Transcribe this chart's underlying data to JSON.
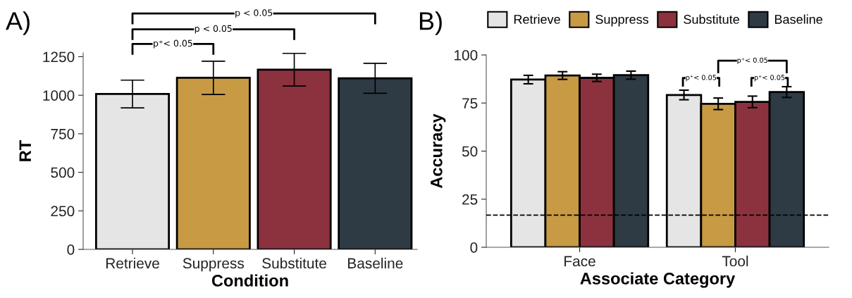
{
  "chart_data": [
    {
      "type": "bar",
      "title": "A)",
      "xlabel": "Condition",
      "ylabel": "RT",
      "categories": [
        "Retrieve",
        "Suppress",
        "Substitute",
        "Baseline"
      ],
      "values": [
        1008,
        1113,
        1166,
        1110
      ],
      "errors": [
        90,
        108,
        106,
        97
      ],
      "colors": [
        "#e5e5e5",
        "#c89a44",
        "#8c323e",
        "#2e3a44"
      ],
      "ylim": [
        0,
        1275
      ],
      "yticks": [
        0,
        250,
        500,
        750,
        1000,
        1250
      ],
      "grid": false,
      "annotations": [
        "p⁺< 0.05",
        "p < 0.05",
        "p < 0.05"
      ]
    },
    {
      "type": "bar",
      "title": "B)",
      "xlabel": "Associate Category",
      "ylabel": "Accuracy",
      "categories": [
        "Face",
        "Tool"
      ],
      "series": [
        {
          "name": "Retrieve",
          "color": "#e5e5e5",
          "values": [
            87.2,
            79.2
          ],
          "errors": [
            2.2,
            2.5
          ]
        },
        {
          "name": "Suppress",
          "color": "#c89a44",
          "values": [
            89.3,
            74.6
          ],
          "errors": [
            2.0,
            3.0
          ]
        },
        {
          "name": "Substitute",
          "color": "#8c323e",
          "values": [
            88.1,
            75.6
          ],
          "errors": [
            1.9,
            3.0
          ]
        },
        {
          "name": "Baseline",
          "color": "#2e3a44",
          "values": [
            89.5,
            80.7
          ],
          "errors": [
            2.1,
            2.8
          ]
        }
      ],
      "ylim": [
        0,
        100
      ],
      "yticks": [
        0,
        25,
        50,
        75,
        100
      ],
      "ref_lines": [
        {
          "axis": "y",
          "value": 16.7,
          "line_style": "dashed",
          "color": "#000000"
        }
      ],
      "grid": false,
      "legend": "top",
      "annotations": [
        "p⁺< 0.05",
        "p⁺< 0.05",
        "p⁺< 0.05"
      ]
    }
  ]
}
